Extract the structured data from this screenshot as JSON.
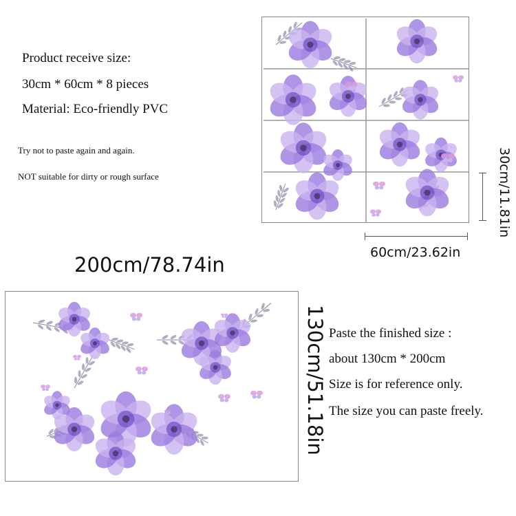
{
  "product_info": {
    "receive_size_label": "Product receive size:",
    "receive_size_value": "30cm * 60cm * 8 pieces",
    "material": "Material: Eco-friendly PVC",
    "note_1": "Try not to paste again and again.",
    "note_2": "NOT suitable for dirty or rough surface"
  },
  "sheet_dimensions": {
    "height_label": "30cm/11.81in",
    "width_label": "60cm/23.62in"
  },
  "finished_dimensions": {
    "width_label": "200cm/78.74in",
    "height_label": "130cm/51.18in"
  },
  "finished_info": {
    "line_1": "Paste the finished size :",
    "line_2": "about 130cm * 200cm",
    "line_3": "Size is for reference only.",
    "line_4": "The size you can paste freely."
  },
  "colors": {
    "petal_light": "#c9b3ef",
    "petal_mid": "#9b7be0",
    "petal_dark": "#6f4fc4",
    "leaf": "#8e8aa8",
    "butterfly": "#d99be0"
  }
}
